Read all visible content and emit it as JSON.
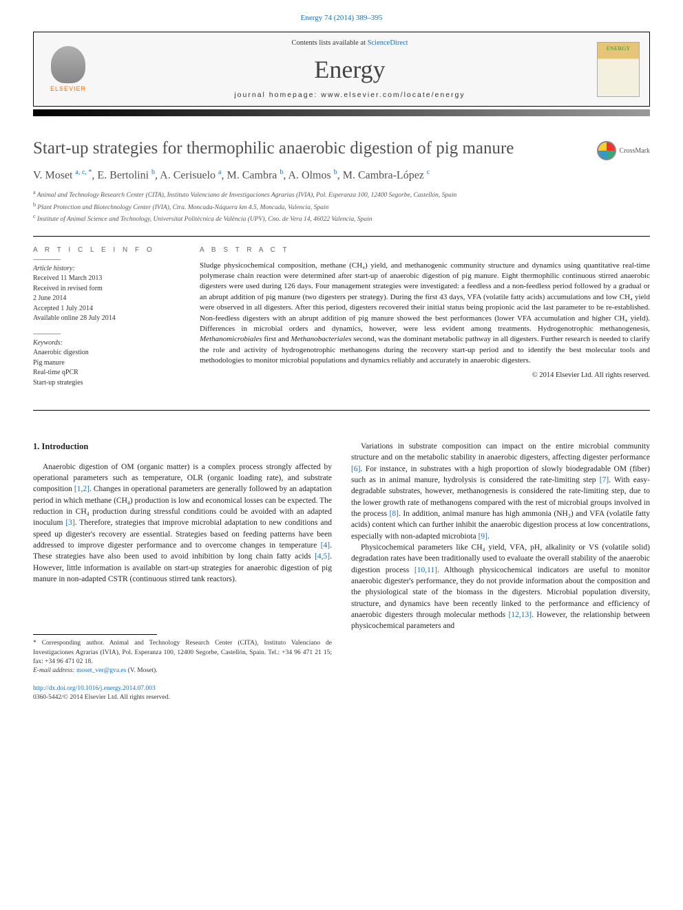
{
  "citation": "Energy 74 (2014) 389–395",
  "header": {
    "contents_prefix": "Contents lists available at ",
    "contents_link": "ScienceDirect",
    "journal_title": "Energy",
    "homepage_label": "journal homepage: www.elsevier.com/locate/energy",
    "publisher": "ELSEVIER",
    "cover_label": "ENERGY"
  },
  "crossmark_label": "CrossMark",
  "article": {
    "title": "Start-up strategies for thermophilic anaerobic digestion of pig manure",
    "authors_html": "V. Moset <sup>a, c, *</sup>, E. Bertolini <sup>b</sup>, A. Cerisuelo <sup>a</sup>, M. Cambra <sup>b</sup>, A. Olmos <sup>b</sup>, M. Cambra-López <sup>c</sup>",
    "affiliations": [
      {
        "sup": "a",
        "text": "Animal and Technology Research Center (CITA), Instituto Valenciano de Investigaciones Agrarias (IVIA), Pol. Esperanza 100, 12400 Segorbe, Castellón, Spain"
      },
      {
        "sup": "b",
        "text": "Plant Protection and Biotechnology Center (IVIA), Ctra. Moncada-Náquera km 4.5, Moncada, Valencia, Spain"
      },
      {
        "sup": "c",
        "text": "Institute of Animal Science and Technology, Universitat Politècnica de València (UPV), Cno. de Vera 14, 46022 Valencia, Spain"
      }
    ]
  },
  "article_info": {
    "heading": "A R T I C L E   I N F O",
    "history_label": "Article history:",
    "history": [
      "Received 11 March 2013",
      "Received in revised form",
      "2 June 2014",
      "Accepted 1 July 2014",
      "Available online 28 July 2014"
    ],
    "keywords_label": "Keywords:",
    "keywords": [
      "Anaerobic digestion",
      "Pig manure",
      "Real-time qPCR",
      "Start-up strategies"
    ]
  },
  "abstract": {
    "heading": "A B S T R A C T",
    "text": "Sludge physicochemical composition, methane (CH₄) yield, and methanogenic community structure and dynamics using quantitative real-time polymerase chain reaction were determined after start-up of anaerobic digestion of pig manure. Eight thermophilic continuous stirred anaerobic digesters were used during 126 days. Four management strategies were investigated: a feedless and a non-feedless period followed by a gradual or an abrupt addition of pig manure (two digesters per strategy). During the first 43 days, VFA (volatile fatty acids) accumulations and low CH₄ yield were observed in all digesters. After this period, digesters recovered their initial status being propionic acid the last parameter to be re-established. Non-feedless digesters with an abrupt addition of pig manure showed the best performances (lower VFA accumulation and higher CH₄ yield). Differences in microbial orders and dynamics, however, were less evident among treatments. Hydrogenotrophic methanogenesis, Methanomicrobiales first and Methanobacteriales second, was the dominant metabolic pathway in all digesters. Further research is needed to clarify the role and activity of hydrogenotrophic methanogens during the recovery start-up period and to identify the best molecular tools and methodologies to monitor microbial populations and dynamics reliably and accurately in anaerobic digesters.",
    "copyright": "© 2014 Elsevier Ltd. All rights reserved."
  },
  "body": {
    "section_heading": "1. Introduction",
    "col1_p1": "Anaerobic digestion of OM (organic matter) is a complex process strongly affected by operational parameters such as temperature, OLR (organic loading rate), and substrate composition [1,2]. Changes in operational parameters are generally followed by an adaptation period in which methane (CH₄) production is low and economical losses can be expected. The reduction in CH₄ production during stressful conditions could be avoided with an adapted inoculum [3]. Therefore, strategies that improve microbial adaptation to new conditions and speed up digester's recovery are essential. Strategies based on feeding patterns have been addressed to improve digester performance and to overcome changes in temperature [4]. These strategies have also been used to avoid inhibition by long chain fatty acids [4,5]. However, little information is available on start-up strategies for anaerobic digestion of pig manure in non-adapted CSTR (continuous stirred tank reactors).",
    "col2_p1": "Variations in substrate composition can impact on the entire microbial community structure and on the metabolic stability in anaerobic digesters, affecting digester performance [6]. For instance, in substrates with a high proportion of slowly biodegradable OM (fiber) such as in animal manure, hydrolysis is considered the rate-limiting step [7]. With easy-degradable substrates, however, methanogenesis is considered the rate-limiting step, due to the lower growth rate of methanogens compared with the rest of microbial groups involved in the process [8]. In addition, animal manure has high ammonia (NH₃) and VFA (volatile fatty acids) content which can further inhibit the anaerobic digestion process at low concentrations, especially with non-adapted microbiota [9].",
    "col2_p2": "Physicochemical parameters like CH₄ yield, VFA, pH, alkalinity or VS (volatile solid) degradation rates have been traditionally used to evaluate the overall stability of the anaerobic digestion process [10,11]. Although physicochemical indicators are useful to monitor anaerobic digester's performance, they do not provide information about the composition and the physiological state of the biomass in the digesters. Microbial population diversity, structure, and dynamics have been recently linked to the performance and efficiency of anaerobic digesters through molecular methods [12,13]. However, the relationship between physicochemical parameters and",
    "refs_col1": {
      "r12": "[1,2]",
      "r3": "[3]",
      "r4": "[4]",
      "r45": "[4,5]"
    },
    "refs_col2": {
      "r6": "[6]",
      "r7": "[7]",
      "r8": "[8]",
      "r9": "[9]",
      "r1011": "[10,11]",
      "r1213": "[12,13]"
    }
  },
  "footnote": {
    "corr_marker": "*",
    "corr_text": "Corresponding author. Animal and Technology Research Center (CITA), Instituto Valenciano de Investigaciones Agrarias (IVIA), Pol. Esperanza 100, 12400 Segorbe, Castellón, Spain. Tel.: +34 96 471 21 15; fax: +34 96 471 02 18.",
    "email_label": "E-mail address:",
    "email": "moset_ver@gva.es",
    "email_person": "(V. Moset)."
  },
  "doi": {
    "url": "http://dx.doi.org/10.1016/j.energy.2014.07.003",
    "issn_line": "0360-5442/© 2014 Elsevier Ltd. All rights reserved."
  },
  "colors": {
    "link": "#1a6db5",
    "text": "#333333",
    "heading_gray": "#666666",
    "publisher_orange": "#ff6a00"
  }
}
